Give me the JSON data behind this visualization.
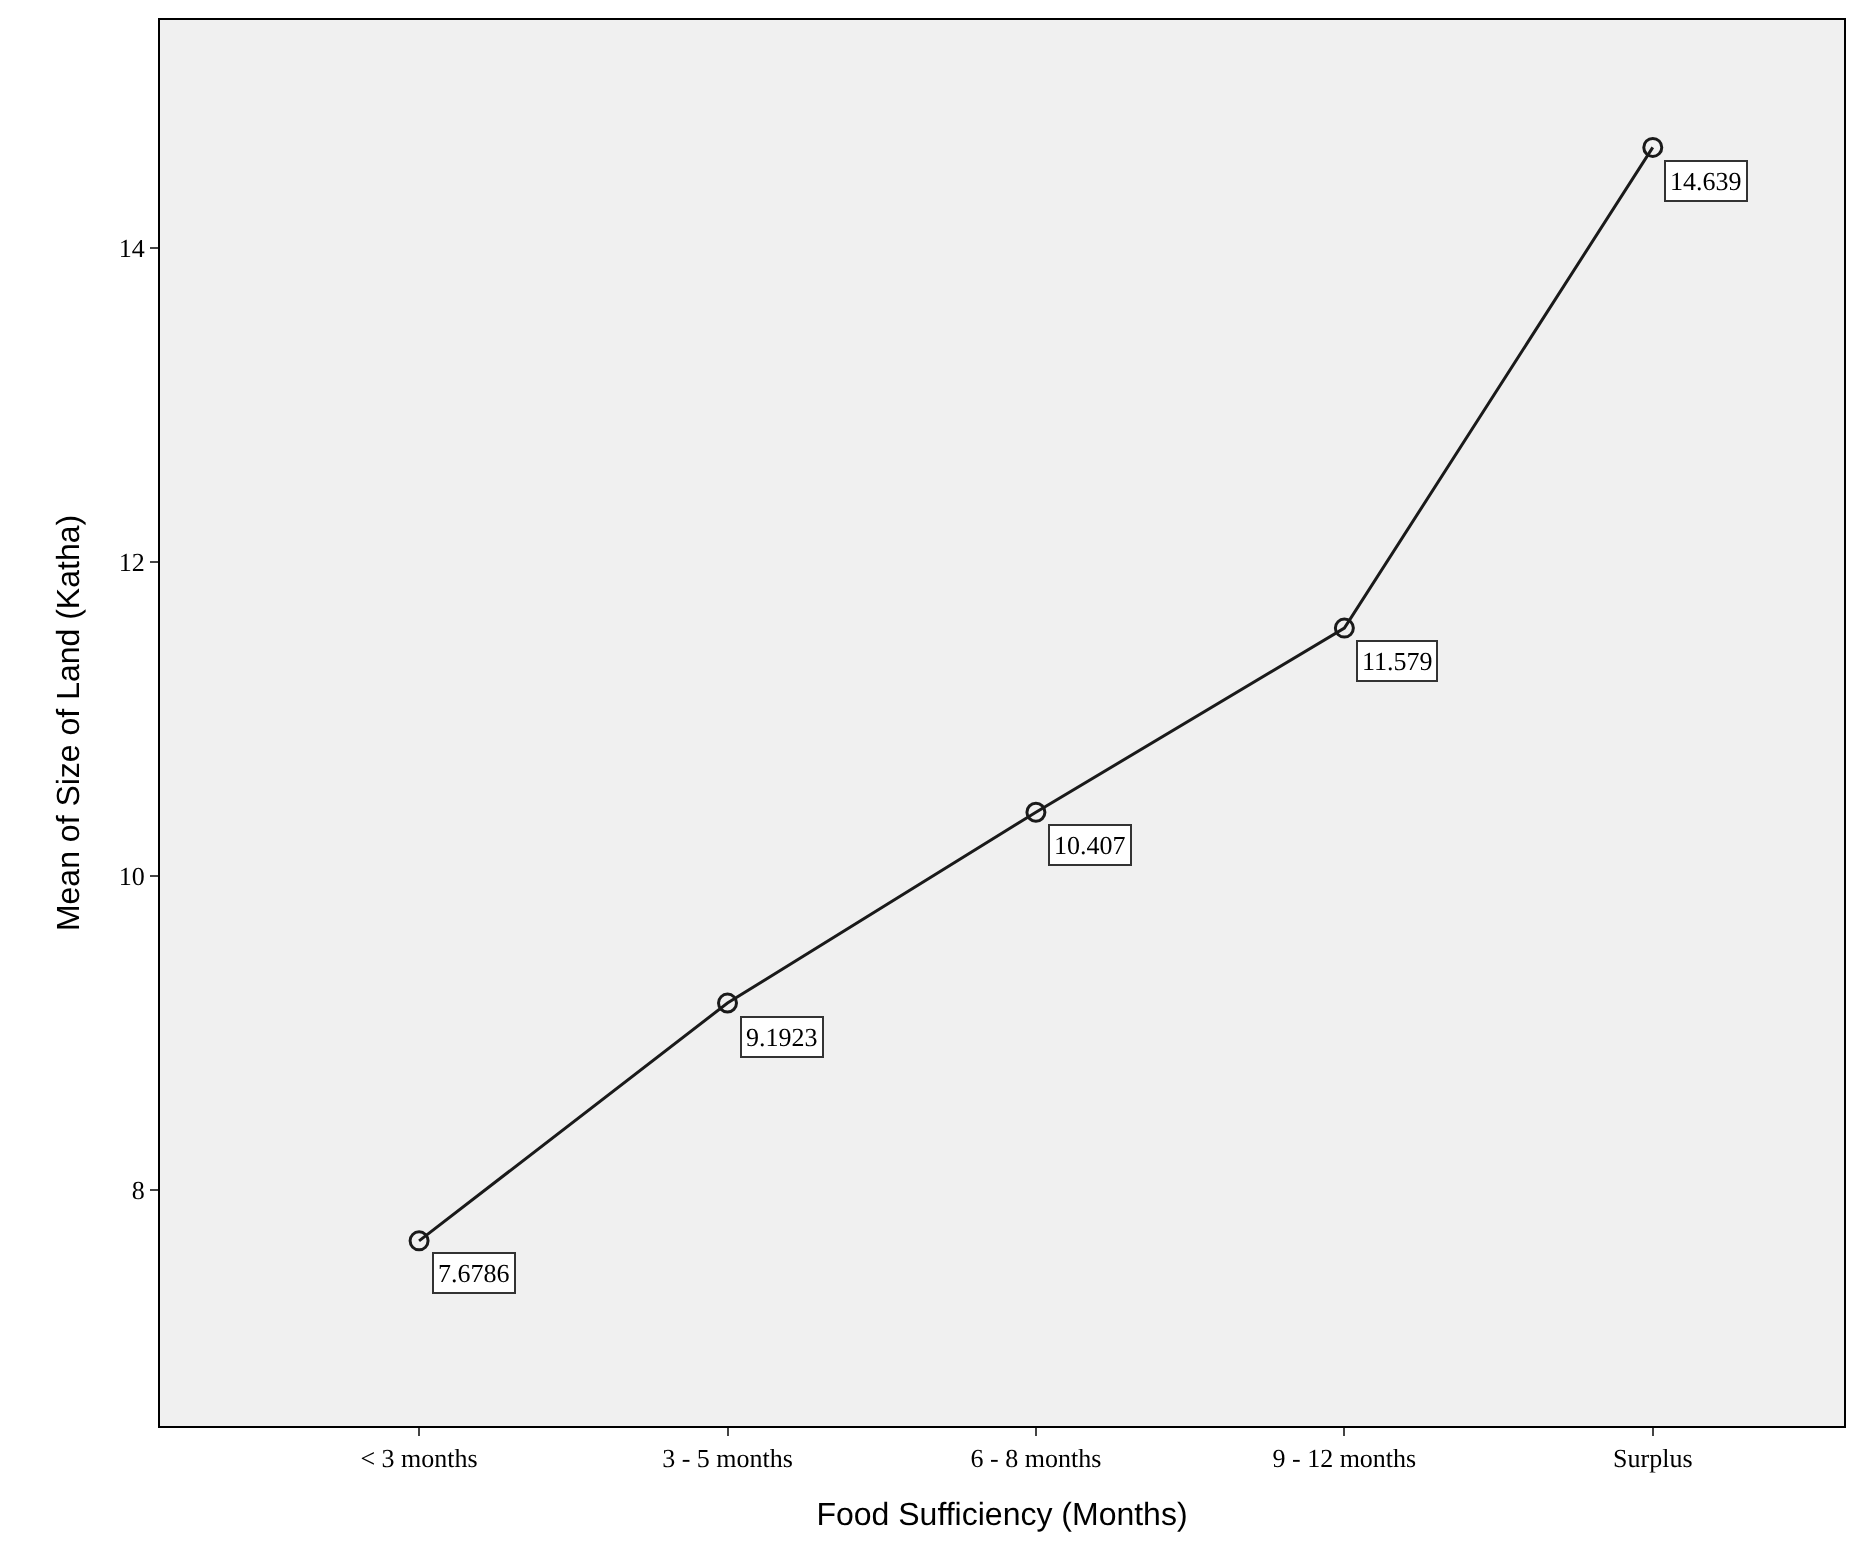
{
  "chart_data": {
    "type": "line",
    "xlabel": "Food Sufficiency (Months)",
    "ylabel": "Mean of Size of Land (Katha)",
    "categories": [
      "< 3 months",
      "3 - 5 months",
      "6 - 8 months",
      "9 - 12 months",
      "Surplus"
    ],
    "series": [
      {
        "color": "#1a1a1a",
        "values": [
          7.6786,
          9.1923,
          10.407,
          11.579,
          14.639
        ]
      }
    ],
    "ylim": [
      6.5,
      15.45
    ],
    "yticks": [
      8,
      10,
      12,
      14
    ],
    "grid": false,
    "legend": false,
    "marker": "circle",
    "line_style": "solid",
    "data_labels": true
  }
}
